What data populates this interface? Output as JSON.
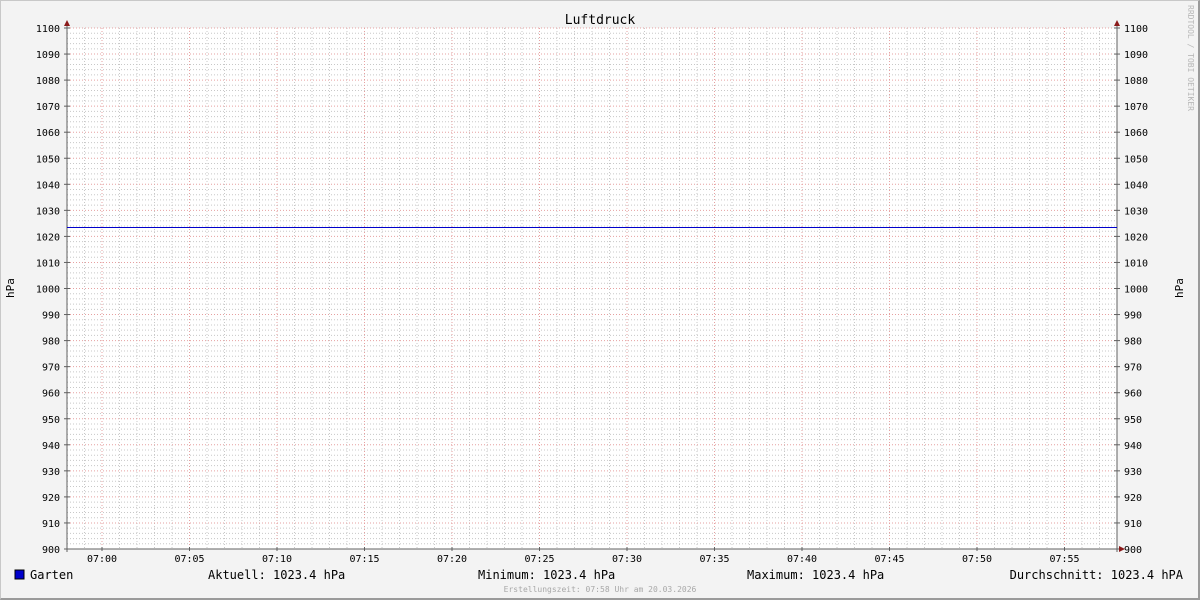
{
  "chart_data": {
    "type": "line",
    "title": "Luftdruck",
    "ylabel": "hPa",
    "ylabel_right": "hPa",
    "ylim": [
      900,
      1100
    ],
    "xlim": [
      "06:58",
      "07:58"
    ],
    "y_ticks": [
      "900",
      "910",
      "920",
      "930",
      "940",
      "950",
      "960",
      "970",
      "980",
      "990",
      "1000",
      "1010",
      "1020",
      "1030",
      "1040",
      "1050",
      "1060",
      "1070",
      "1080",
      "1090",
      "1100"
    ],
    "x_ticks": [
      "07:00",
      "07:05",
      "07:10",
      "07:15",
      "07:20",
      "07:25",
      "07:30",
      "07:35",
      "07:40",
      "07:45",
      "07:50",
      "07:55"
    ],
    "grid": true,
    "series": [
      {
        "name": "Garten",
        "color": "#0000cc",
        "x": [
          "06:58",
          "07:58"
        ],
        "values": [
          1023.4,
          1023.4
        ]
      }
    ],
    "legend": {
      "placement": "bottom",
      "entry": "Garten",
      "current": "Aktuell: 1023.4 hPa",
      "minimum": "Minimum: 1023.4 hPa",
      "maximum": "Maximum: 1023.4 hPa",
      "average": "Durchschnitt: 1023.4 hPA"
    },
    "footer": "Erstellungszeit: 07:58 Uhr am 20.03.2026",
    "watermark": "RRDTOOL / TOBI OETIKER",
    "colors": {
      "major_grid": "#e6a0a0",
      "minor_grid": "#c8c8c8",
      "axis": "#606060",
      "arrow": "#8b1a1a"
    }
  }
}
